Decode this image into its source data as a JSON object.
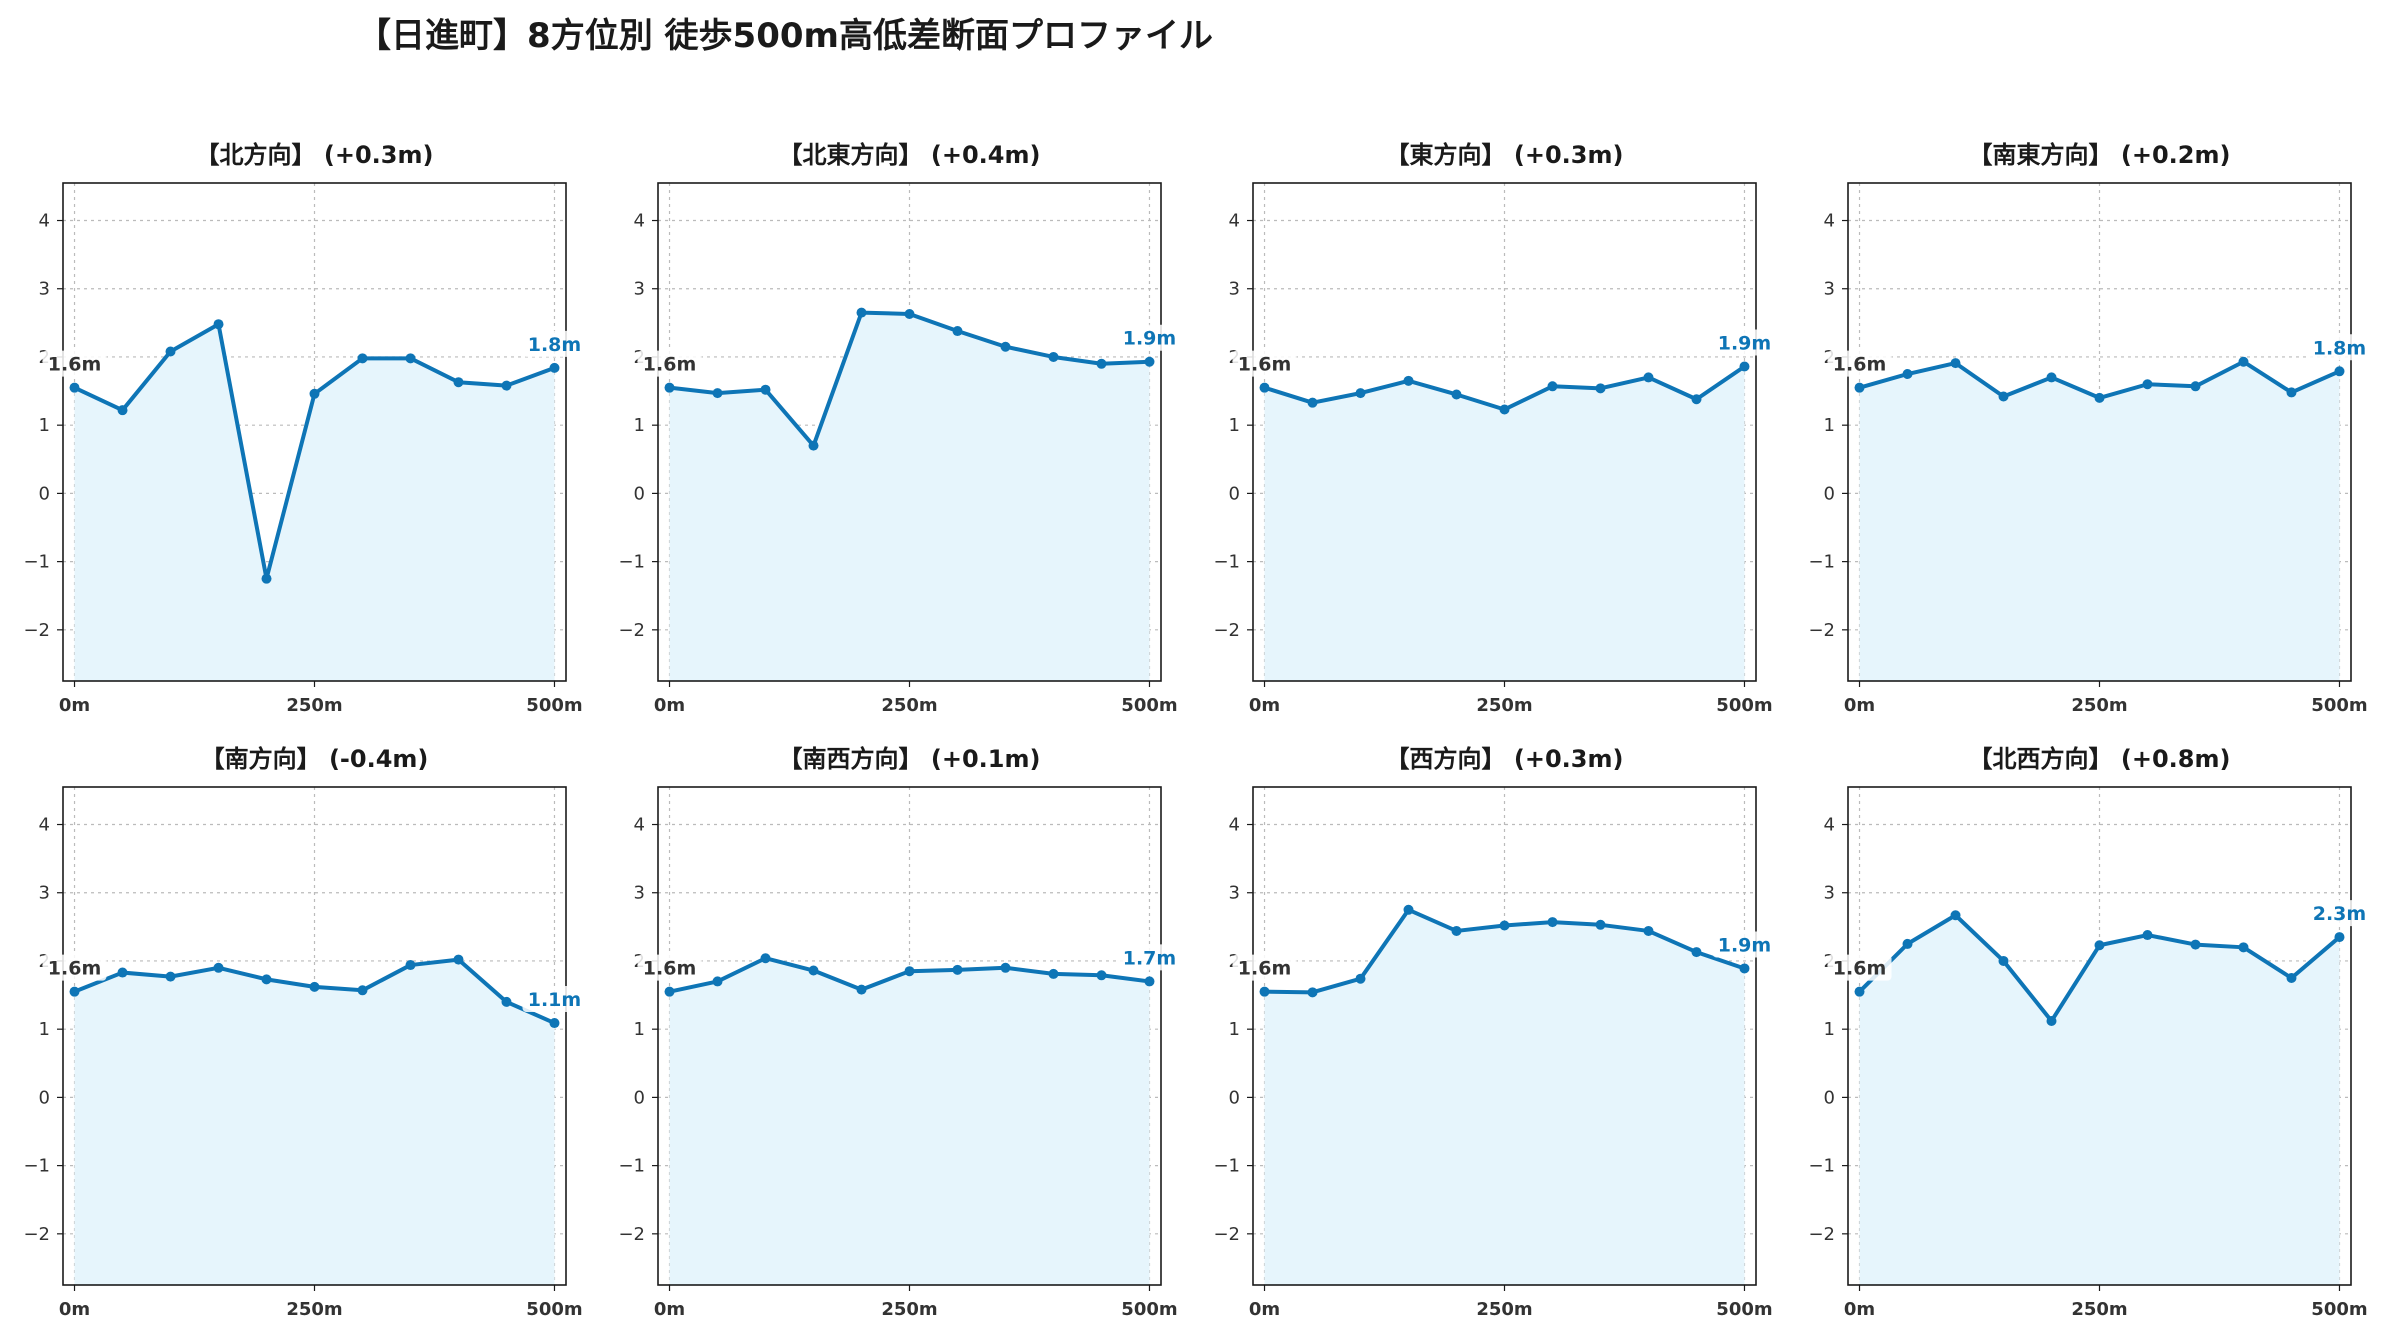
{
  "figure": {
    "title": "【日進町】8方位別 徒歩500m高低差断面プロファイル"
  },
  "colors": {
    "line": "#0e75b6",
    "fill": "#e6f5fc",
    "grid": "#bbbbbb",
    "start_label": "#333333",
    "end_label": "#0e75b6"
  },
  "chart_data": [
    {
      "type": "area",
      "title": "【北方向】 (+0.3m)",
      "x": [
        0,
        50,
        100,
        150,
        200,
        250,
        300,
        350,
        400,
        450,
        500
      ],
      "y": [
        1.55,
        1.22,
        2.08,
        2.48,
        -1.25,
        1.46,
        1.98,
        1.98,
        1.63,
        1.58,
        1.84
      ],
      "xticks": [
        "0m",
        "250m",
        "500m"
      ],
      "yticks": [
        -2,
        -1,
        0,
        1,
        2,
        3,
        4
      ],
      "ylim": [
        -2.75,
        4.55
      ],
      "xlim": [
        -12,
        512
      ],
      "start_label": "1.6m",
      "end_label": "1.8m",
      "grid": true
    },
    {
      "type": "area",
      "title": "【北東方向】 (+0.4m)",
      "x": [
        0,
        50,
        100,
        150,
        200,
        250,
        300,
        350,
        400,
        450,
        500
      ],
      "y": [
        1.55,
        1.47,
        1.52,
        0.7,
        2.65,
        2.63,
        2.38,
        2.15,
        2.0,
        1.9,
        1.93
      ],
      "xticks": [
        "0m",
        "250m",
        "500m"
      ],
      "yticks": [
        -2,
        -1,
        0,
        1,
        2,
        3,
        4
      ],
      "ylim": [
        -2.75,
        4.55
      ],
      "xlim": [
        -12,
        512
      ],
      "start_label": "1.6m",
      "end_label": "1.9m",
      "grid": true
    },
    {
      "type": "area",
      "title": "【東方向】 (+0.3m)",
      "x": [
        0,
        50,
        100,
        150,
        200,
        250,
        300,
        350,
        400,
        450,
        500
      ],
      "y": [
        1.55,
        1.33,
        1.47,
        1.65,
        1.45,
        1.23,
        1.57,
        1.54,
        1.7,
        1.38,
        1.86
      ],
      "xticks": [
        "0m",
        "250m",
        "500m"
      ],
      "yticks": [
        -2,
        -1,
        0,
        1,
        2,
        3,
        4
      ],
      "ylim": [
        -2.75,
        4.55
      ],
      "xlim": [
        -12,
        512
      ],
      "start_label": "1.6m",
      "end_label": "1.9m",
      "grid": true
    },
    {
      "type": "area",
      "title": "【南東方向】 (+0.2m)",
      "x": [
        0,
        50,
        100,
        150,
        200,
        250,
        300,
        350,
        400,
        450,
        500
      ],
      "y": [
        1.55,
        1.75,
        1.91,
        1.42,
        1.7,
        1.4,
        1.6,
        1.57,
        1.93,
        1.48,
        1.79
      ],
      "xticks": [
        "0m",
        "250m",
        "500m"
      ],
      "yticks": [
        -2,
        -1,
        0,
        1,
        2,
        3,
        4
      ],
      "ylim": [
        -2.75,
        4.55
      ],
      "xlim": [
        -12,
        512
      ],
      "start_label": "1.6m",
      "end_label": "1.8m",
      "grid": true
    },
    {
      "type": "area",
      "title": "【南方向】 (-0.4m)",
      "x": [
        0,
        50,
        100,
        150,
        200,
        250,
        300,
        350,
        400,
        450,
        500
      ],
      "y": [
        1.55,
        1.83,
        1.77,
        1.9,
        1.73,
        1.62,
        1.57,
        1.94,
        2.02,
        1.4,
        1.09
      ],
      "xticks": [
        "0m",
        "250m",
        "500m"
      ],
      "yticks": [
        -2,
        -1,
        0,
        1,
        2,
        3,
        4
      ],
      "ylim": [
        -2.75,
        4.55
      ],
      "xlim": [
        -12,
        512
      ],
      "start_label": "1.6m",
      "end_label": "1.1m",
      "grid": true
    },
    {
      "type": "area",
      "title": "【南西方向】 (+0.1m)",
      "x": [
        0,
        50,
        100,
        150,
        200,
        250,
        300,
        350,
        400,
        450,
        500
      ],
      "y": [
        1.55,
        1.7,
        2.04,
        1.86,
        1.58,
        1.85,
        1.87,
        1.9,
        1.81,
        1.79,
        1.7
      ],
      "xticks": [
        "0m",
        "250m",
        "500m"
      ],
      "yticks": [
        -2,
        -1,
        0,
        1,
        2,
        3,
        4
      ],
      "ylim": [
        -2.75,
        4.55
      ],
      "xlim": [
        -12,
        512
      ],
      "start_label": "1.6m",
      "end_label": "1.7m",
      "grid": true
    },
    {
      "type": "area",
      "title": "【西方向】 (+0.3m)",
      "x": [
        0,
        50,
        100,
        150,
        200,
        250,
        300,
        350,
        400,
        450,
        500
      ],
      "y": [
        1.55,
        1.54,
        1.74,
        2.75,
        2.44,
        2.52,
        2.57,
        2.53,
        2.44,
        2.13,
        1.89
      ],
      "xticks": [
        "0m",
        "250m",
        "500m"
      ],
      "yticks": [
        -2,
        -1,
        0,
        1,
        2,
        3,
        4
      ],
      "ylim": [
        -2.75,
        4.55
      ],
      "xlim": [
        -12,
        512
      ],
      "start_label": "1.6m",
      "end_label": "1.9m",
      "grid": true
    },
    {
      "type": "area",
      "title": "【北西方向】 (+0.8m)",
      "x": [
        0,
        50,
        100,
        150,
        200,
        250,
        300,
        350,
        400,
        450,
        500
      ],
      "y": [
        1.55,
        2.25,
        2.67,
        2.0,
        1.12,
        2.23,
        2.38,
        2.24,
        2.2,
        1.75,
        2.35
      ],
      "xticks": [
        "0m",
        "250m",
        "500m"
      ],
      "yticks": [
        -2,
        -1,
        0,
        1,
        2,
        3,
        4
      ],
      "ylim": [
        -2.75,
        4.55
      ],
      "xlim": [
        -12,
        512
      ],
      "start_label": "1.6m",
      "end_label": "2.3m",
      "grid": true
    }
  ]
}
